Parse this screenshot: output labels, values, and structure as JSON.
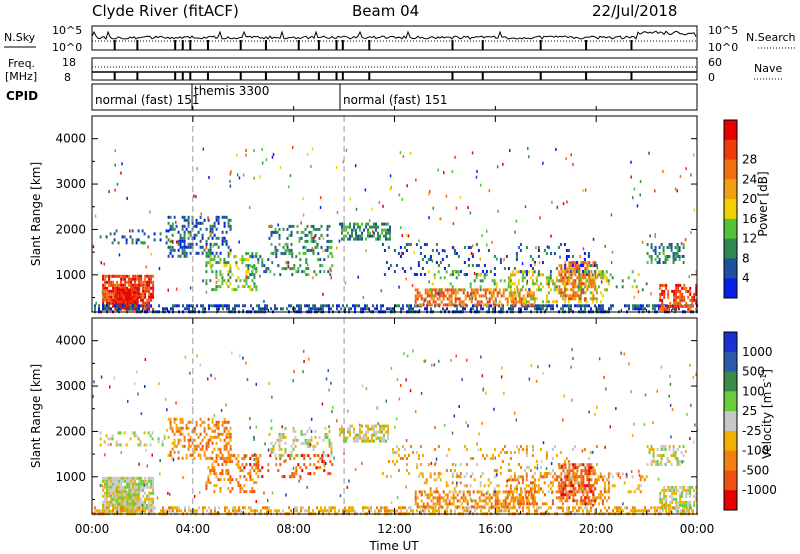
{
  "header": {
    "station": "Clyde River (fitACF)",
    "beam": "Beam 04",
    "date": "22/Jul/2018"
  },
  "panels": {
    "nsky_label": "N.Sky",
    "nsky_ticks": [
      "10^5",
      "10^0"
    ],
    "nsearch_label": "N.Search",
    "nsearch_ticks": [
      "10^5",
      "10^0"
    ],
    "freq_label_1": "Freq.",
    "freq_label_2": "[MHz]",
    "freq_ticks": [
      "18",
      "8"
    ],
    "nave_label": "Nave",
    "nave_ticks": [
      "60",
      "0"
    ],
    "cpid_label": "CPID",
    "cpid_segments": [
      {
        "label": "normal (fast) 151",
        "start_h": 0.0
      },
      {
        "label": "themis 3300",
        "start_h": 4.0
      },
      {
        "label": "normal (fast) 151",
        "start_h": 10.0
      }
    ]
  },
  "chart_data": [
    {
      "type": "heatmap",
      "name": "power",
      "ylabel": "Slant Range [km]",
      "ylim": [
        180,
        4500
      ],
      "xlim_hours": [
        0,
        24
      ],
      "yticks": [
        "1000",
        "2000",
        "3000",
        "4000"
      ],
      "colorbar_label": "Power [dB]",
      "colorbar_ticks": [
        "4",
        "8",
        "12",
        "16",
        "20",
        "24",
        "28"
      ],
      "colors": [
        "#0a1fe6",
        "#1f4fa0",
        "#2e8a52",
        "#52c23a",
        "#f0d000",
        "#f0a010",
        "#f07010",
        "#f03a08",
        "#e60000"
      ]
    },
    {
      "type": "heatmap",
      "name": "velocity",
      "ylabel": "Slant Range [km]",
      "ylim": [
        180,
        4500
      ],
      "xlim_hours": [
        0,
        24
      ],
      "yticks": [
        "1000",
        "2000",
        "3000",
        "4000"
      ],
      "colorbar_label": "Velocity [m s",
      "colorbar_label_sup": "-1",
      "colorbar_label_end": "]",
      "colorbar_ticks": [
        "1000",
        "500",
        "100",
        "25",
        "-25",
        "-100",
        "-500",
        "-1000"
      ],
      "colors": [
        "#1a30d0",
        "#2a5aa8",
        "#3a8a4a",
        "#6acc3a",
        "#c8c8c8",
        "#f0b000",
        "#f08010",
        "#f05010",
        "#e60000"
      ]
    }
  ],
  "xaxis": {
    "ticks": [
      "00:00",
      "04:00",
      "08:00",
      "12:00",
      "16:00",
      "20:00",
      "00:00"
    ],
    "label": "Time UT"
  }
}
